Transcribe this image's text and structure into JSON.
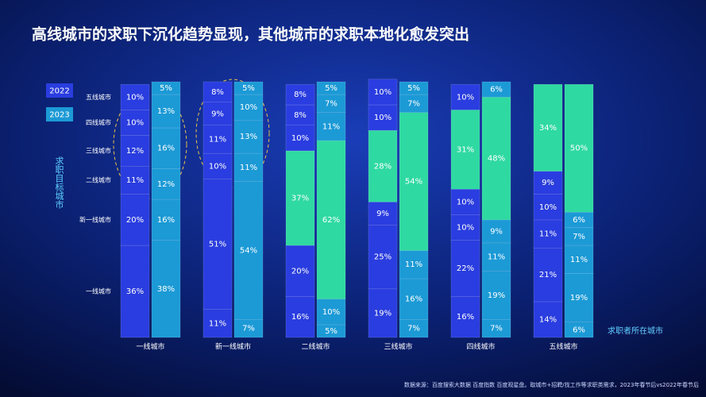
{
  "chart_data": {
    "type": "grouped_stacked_bar",
    "title": "高线城市的求职下沉化趋势显现，其他城市的求职本地化愈发突出",
    "y_label": "求职目标城市",
    "x_label": "求职者所在城市",
    "source": "数据来源：百度搜索大数据 百度指数 百度观星盘。取城市+招聘/找工作等求职类需求，2023年春节后vs2022年春节后",
    "categories": [
      "一线城市",
      "新一线城市",
      "二线城市",
      "三线城市",
      "四线城市",
      "五线城市"
    ],
    "segment_labels": [
      "一线城市",
      "新一线城市",
      "二线城市",
      "三线城市",
      "四线城市",
      "五线城市"
    ],
    "ylim": [
      0,
      100
    ],
    "highlight_color": "#2fd9a2",
    "series": [
      {
        "name": "2022",
        "color": "#2a3de0",
        "values": [
          [
            36,
            20,
            11,
            12,
            10,
            10
          ],
          [
            11,
            51,
            10,
            11,
            9,
            8
          ],
          [
            16,
            20,
            37,
            10,
            8,
            8
          ],
          [
            19,
            25,
            9,
            28,
            10,
            10
          ],
          [
            16,
            22,
            10,
            10,
            31,
            10
          ],
          [
            14,
            21,
            11,
            10,
            9,
            34
          ]
        ],
        "value_labels": [
          [
            "36%",
            "20%",
            "11%",
            "12%",
            "10%",
            "10%"
          ],
          [
            "11%",
            "51%",
            "10%",
            "11%",
            "9%",
            "8%"
          ],
          [
            "16%",
            "20%",
            "37%",
            "10%",
            "8%",
            "8%"
          ],
          [
            "19%",
            "25%",
            "9%",
            "28%",
            "10%",
            "10%"
          ],
          [
            "16%",
            "22%",
            "10%",
            "10%",
            "31%",
            "10%"
          ],
          [
            "14%",
            "21%",
            "11%",
            "10%",
            "9%",
            "34%"
          ]
        ]
      },
      {
        "name": "2023",
        "color": "#1c9ad6",
        "values": [
          [
            38,
            16,
            12,
            16,
            13,
            5
          ],
          [
            7,
            54,
            11,
            13,
            10,
            5
          ],
          [
            5,
            10,
            62,
            11,
            7,
            5
          ],
          [
            7,
            16,
            11,
            54,
            7,
            5
          ],
          [
            7,
            19,
            11,
            9,
            48,
            6
          ],
          [
            6,
            19,
            11,
            7,
            6,
            50
          ]
        ],
        "value_labels": [
          [
            "38%",
            "16%",
            "12%",
            "16%",
            "13%",
            "5%"
          ],
          [
            "7%",
            "54%",
            "11%",
            "13%",
            "10%",
            "5%"
          ],
          [
            "5%",
            "10%",
            "62%",
            "11%",
            "7%",
            "5%"
          ],
          [
            "7%",
            "16%",
            "11%",
            "54%",
            "7%",
            "5%"
          ],
          [
            "7%",
            "19%",
            "11%",
            "9%",
            "48%",
            "6%"
          ],
          [
            "6%",
            "19%",
            "11%",
            "7%",
            "6%",
            "50%"
          ]
        ]
      }
    ]
  }
}
